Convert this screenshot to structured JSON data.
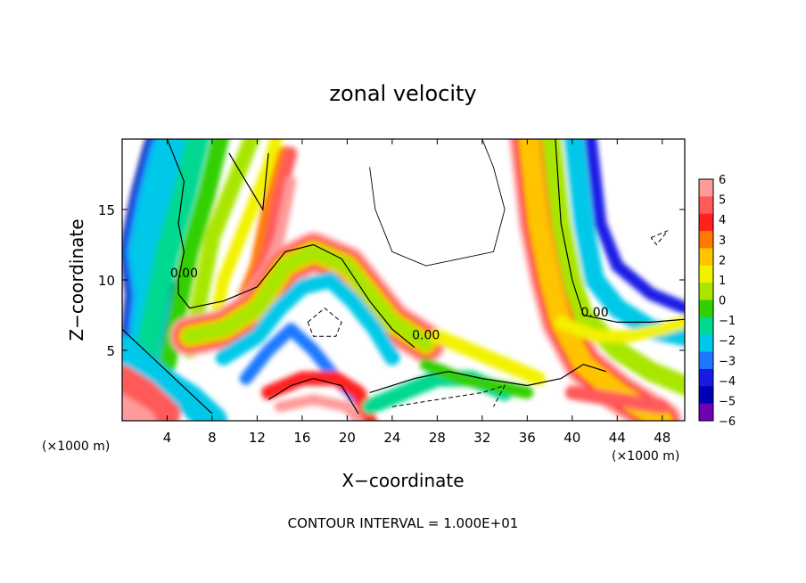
{
  "chart_data": {
    "type": "heatmap",
    "title": "zonal velocity",
    "xlabel": "X−coordinate",
    "ylabel": "Z−coordinate",
    "x_unit_label": "(×1000 m)",
    "z_unit_label": "(×1000 m)",
    "xlim": [
      0,
      50
    ],
    "ylim": [
      0,
      20
    ],
    "x_ticks": [
      "4",
      "8",
      "12",
      "16",
      "20",
      "24",
      "28",
      "32",
      "36",
      "40",
      "44",
      "48"
    ],
    "x_tick_values": [
      4,
      8,
      12,
      16,
      20,
      24,
      28,
      32,
      36,
      40,
      44,
      48
    ],
    "y_ticks": [
      "5",
      "10",
      "15"
    ],
    "y_tick_values": [
      5,
      10,
      15
    ],
    "colorbar": {
      "labels": [
        "6",
        "5",
        "4",
        "3",
        "2",
        "1",
        "0",
        "−1",
        "−2",
        "−3",
        "−4",
        "−5",
        "−6"
      ],
      "values": [
        6,
        5,
        4,
        3,
        2,
        1,
        0,
        -1,
        -2,
        -3,
        -4,
        -5,
        -6
      ],
      "colors": [
        "#ff9a9a",
        "#ff5a5a",
        "#ff2020",
        "#ff7a00",
        "#ffc400",
        "#f2f200",
        "#a8e600",
        "#30d000",
        "#00d890",
        "#00c8e8",
        "#1e78ff",
        "#1a1ae6",
        "#0000b4",
        "#7000b4"
      ]
    },
    "contour_labels": [
      "0.00",
      "0.00",
      "0.00"
    ],
    "footer": "CONTOUR INTERVAL = 1.000E+01"
  }
}
